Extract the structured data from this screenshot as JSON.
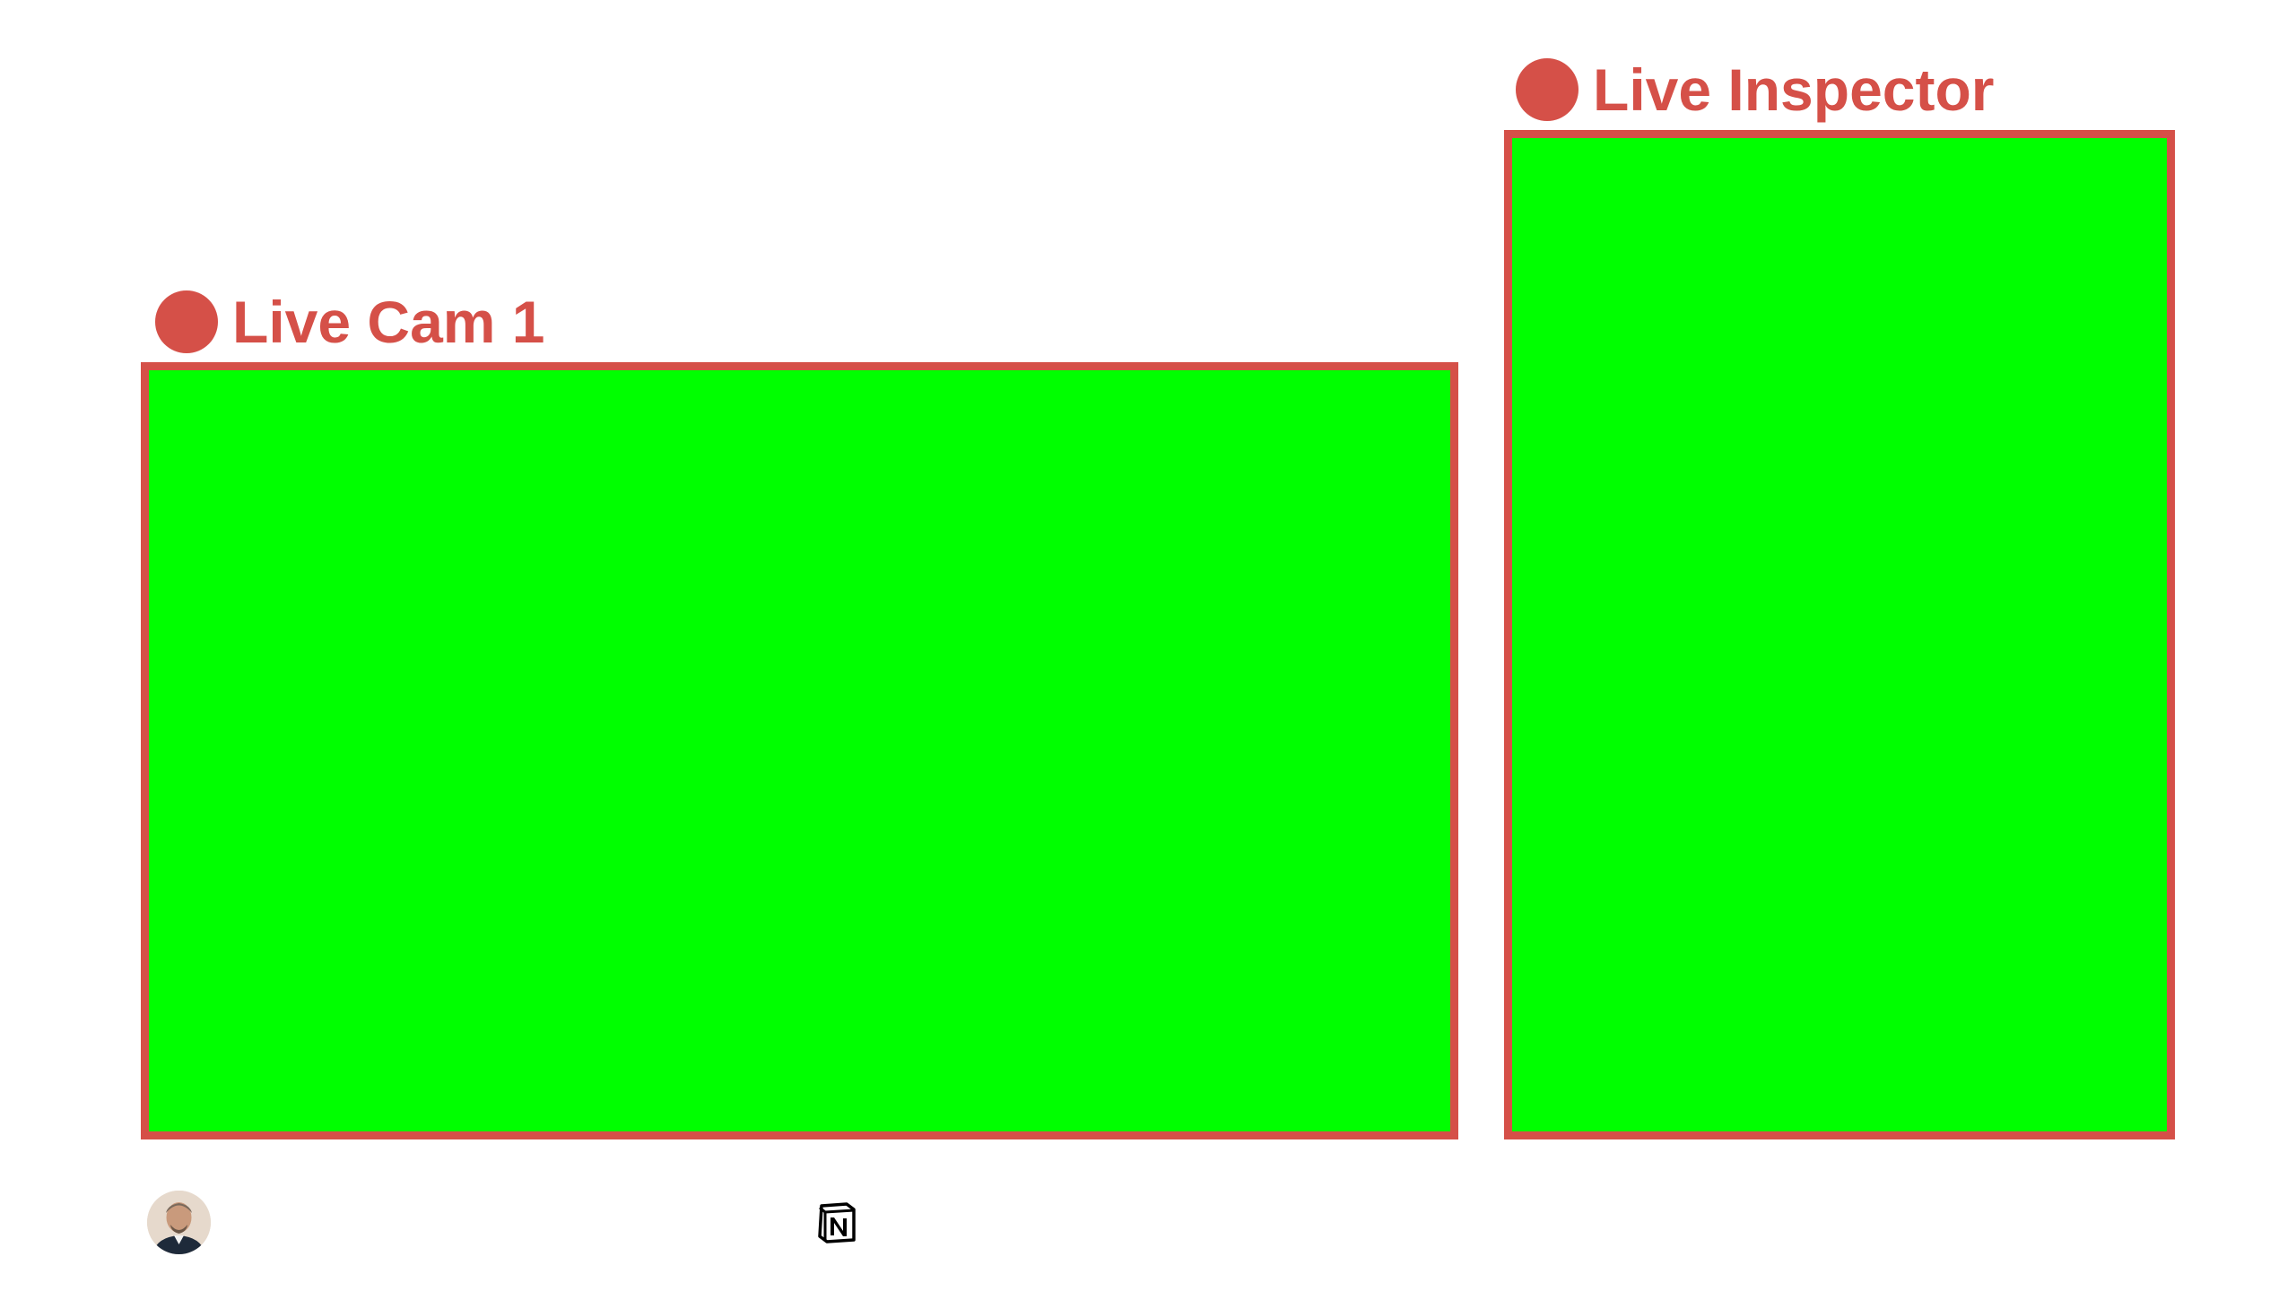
{
  "feeds": {
    "cam1": {
      "label": "Live Cam 1",
      "live_indicator": "live-dot"
    },
    "inspector": {
      "label": "Live Inspector",
      "live_indicator": "live-dot"
    }
  },
  "colors": {
    "accent": "#d55048",
    "chroma_key": "#00ff00",
    "background": "#ffffff"
  },
  "footer": {
    "avatar_icon": "user-avatar",
    "logo_icon": "notion-logo-icon"
  }
}
